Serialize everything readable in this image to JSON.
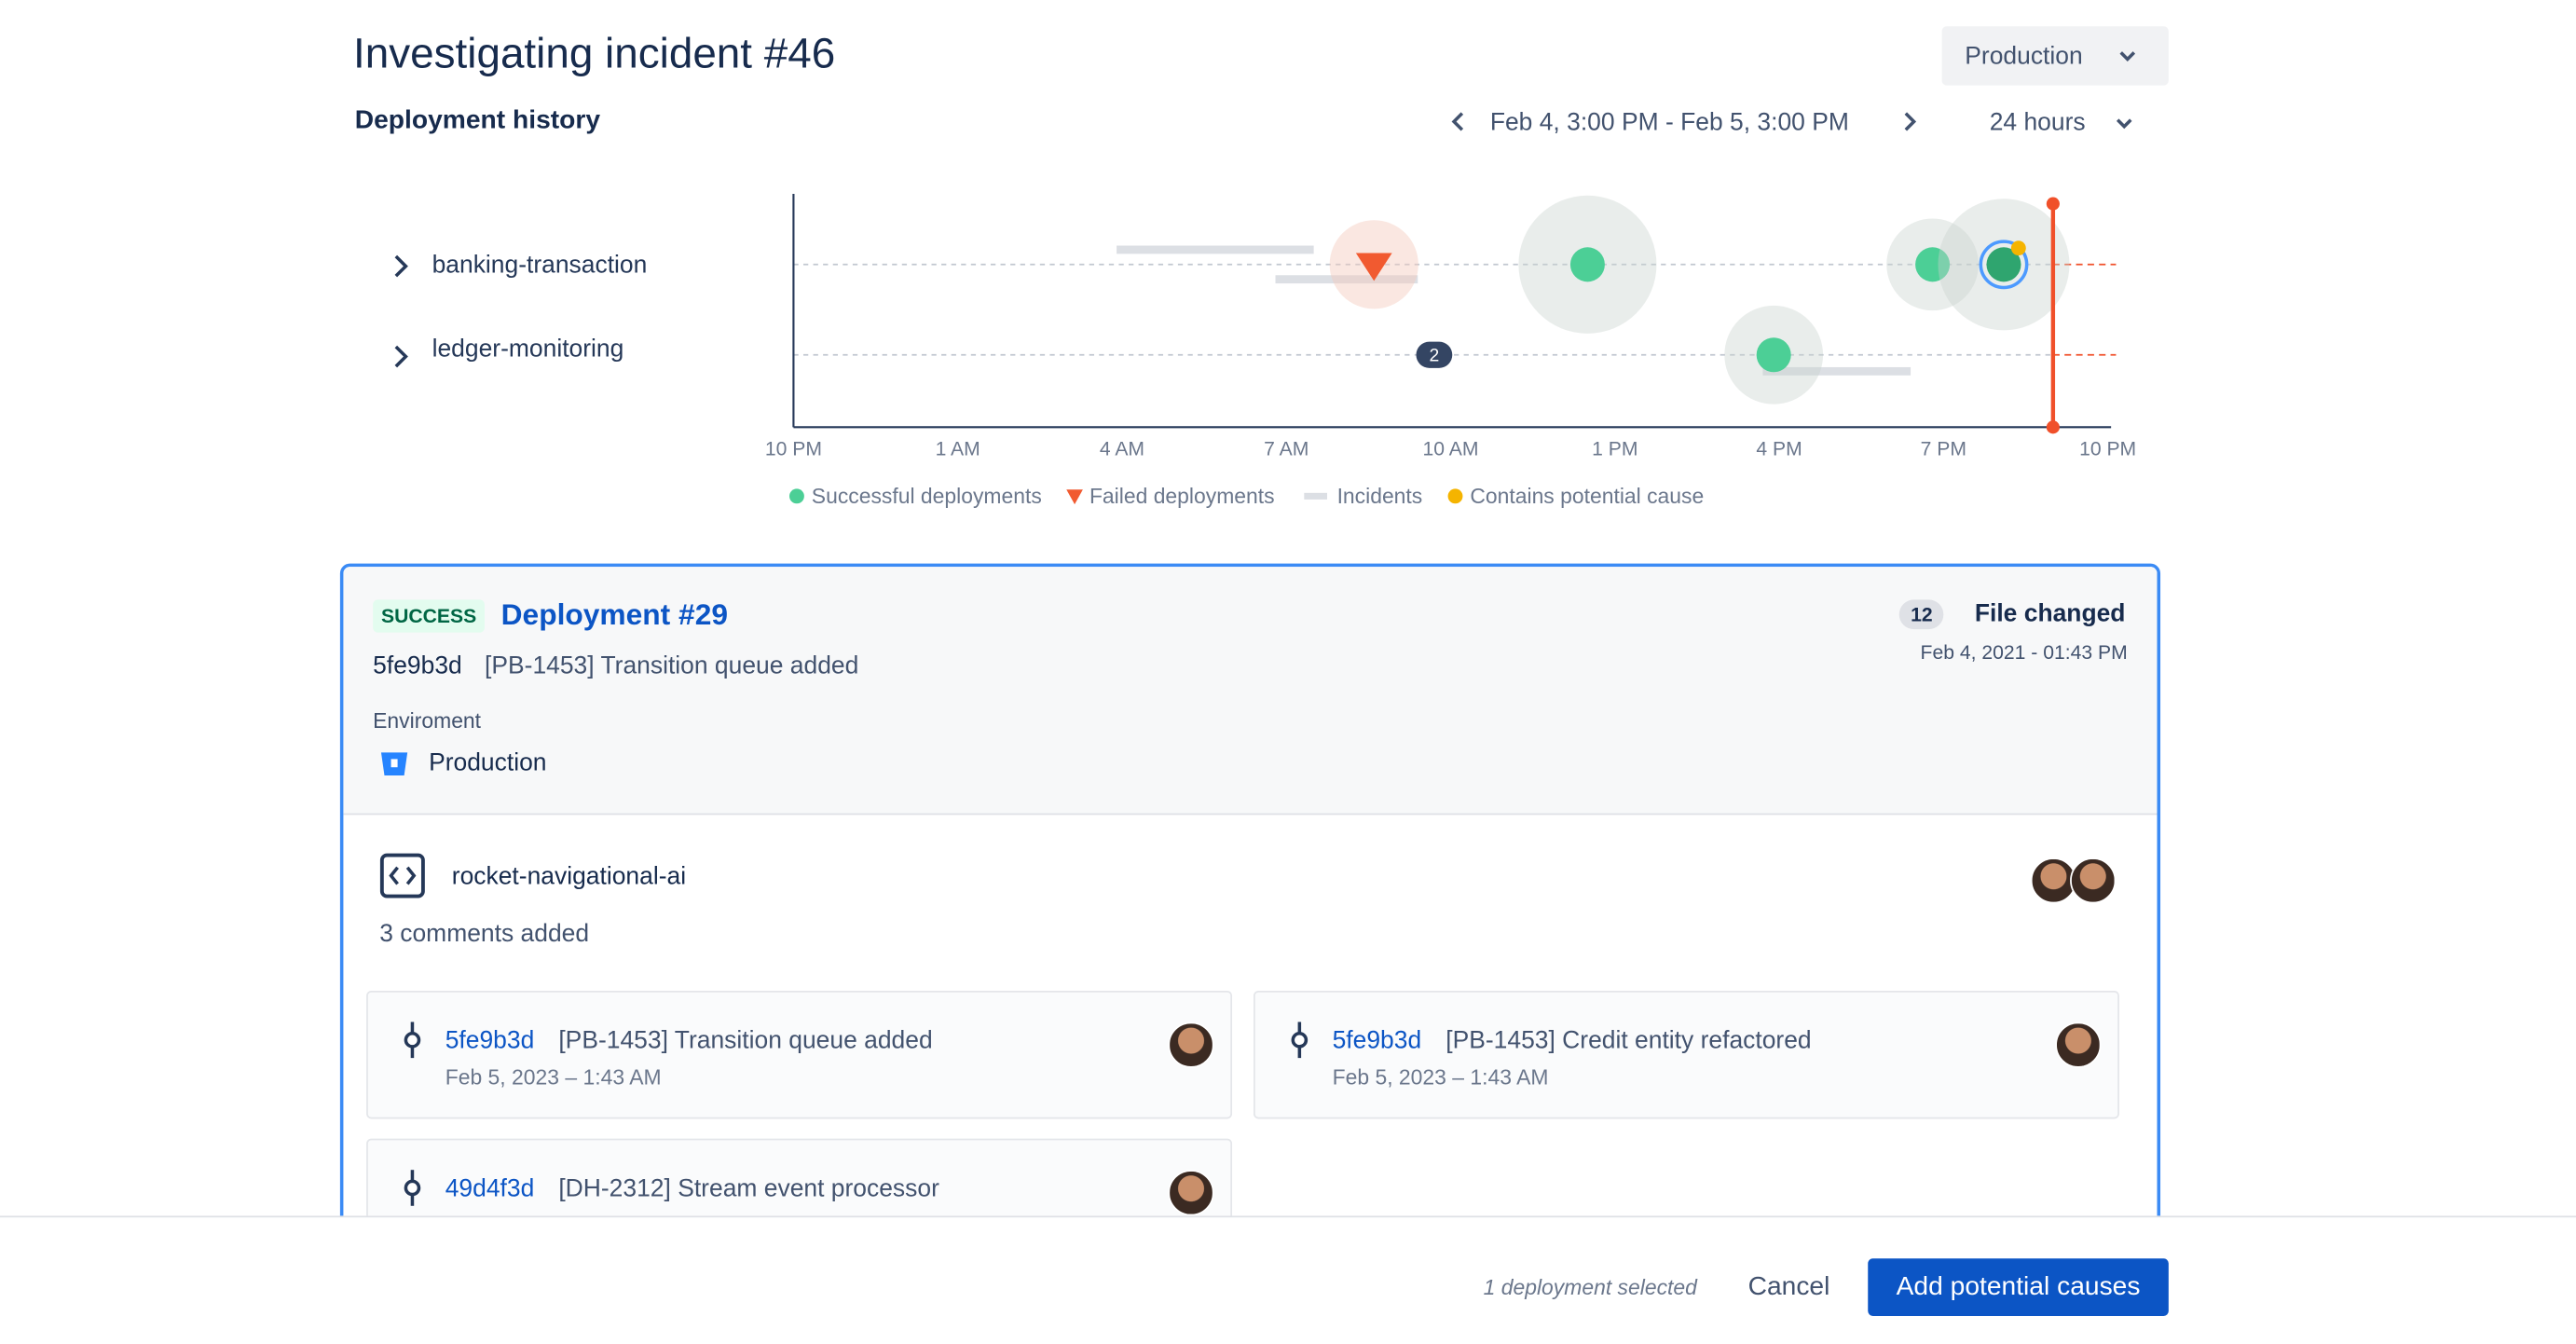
{
  "header": {
    "title": "Investigating incident #46",
    "environment_dropdown": "Production"
  },
  "chart_data": {
    "type": "timeline",
    "title": "Deployment history",
    "range_label": "Feb 4, 3:00 PM - Feb 5, 3:00 PM",
    "range_dropdown": "24 hours",
    "categories": [
      "banking-transaction",
      "ledger-monitoring"
    ],
    "xlim": [
      0,
      24
    ],
    "xticks": [
      {
        "value": 0,
        "label": "10 PM"
      },
      {
        "value": 3,
        "label": "1 AM"
      },
      {
        "value": 6,
        "label": "4 AM"
      },
      {
        "value": 9,
        "label": "7 AM"
      },
      {
        "value": 12,
        "label": "10 AM"
      },
      {
        "value": 15,
        "label": "1 PM"
      },
      {
        "value": 18,
        "label": "4 PM"
      },
      {
        "value": 21,
        "label": "7 PM"
      },
      {
        "value": 24,
        "label": "10 PM"
      }
    ],
    "series": [
      {
        "name": "Successful deployments",
        "color": "#4ccf96",
        "marker": "circle",
        "x": [
          14.5,
          20.8,
          22.1,
          17.9
        ],
        "rows": [
          0,
          0,
          0,
          1
        ],
        "sizes": [
          42,
          28,
          40,
          30
        ],
        "selected_index": 2
      },
      {
        "name": "Failed deployments",
        "color": "#f15a30",
        "marker": "triangle",
        "x": [
          10.6
        ],
        "rows": [
          0
        ],
        "sizes": [
          27
        ]
      },
      {
        "name": "Incidents",
        "color": "#dcdfe4",
        "marker": "bar",
        "start": [
          5.9,
          8.8,
          17.7
        ],
        "end": [
          9.5,
          11.4,
          20.4
        ],
        "rows": [
          0,
          0,
          1
        ]
      },
      {
        "name": "Contains potential cause",
        "color": "#f5b400",
        "marker": "dot",
        "x": [
          22.1
        ],
        "rows": [
          0
        ]
      }
    ],
    "groups": [
      {
        "x": 11.7,
        "row": 1,
        "count": 2
      }
    ],
    "now": 23.0,
    "now_color": "#f0502a"
  },
  "deployment": {
    "status": "SUCCESS",
    "title": "Deployment #29",
    "commit_hash": "5fe9b3d",
    "commit_message": "[PB-1453] Transition queue added",
    "environment_label": "Enviroment",
    "environment": "Production",
    "files_count": 12,
    "files_label": "File changed",
    "date": "Feb 4, 2021 - 01:43 PM"
  },
  "repository": {
    "name": "rocket-navigational-ai",
    "comments": "3 comments added",
    "commits": [
      {
        "hash": "5fe9b3d",
        "message": "[PB-1453] Transition queue added",
        "date": "Feb 5, 2023 – 1:43 AM"
      },
      {
        "hash": "5fe9b3d",
        "message": "[PB-1453] Credit entity refactored",
        "date": "Feb 5, 2023 – 1:43 AM"
      },
      {
        "hash": "49d4f3d",
        "message": "[DH-2312] Stream event processor"
      }
    ]
  },
  "footer": {
    "selection": "1 deployment selected",
    "cancel": "Cancel",
    "submit": "Add potential causes"
  }
}
